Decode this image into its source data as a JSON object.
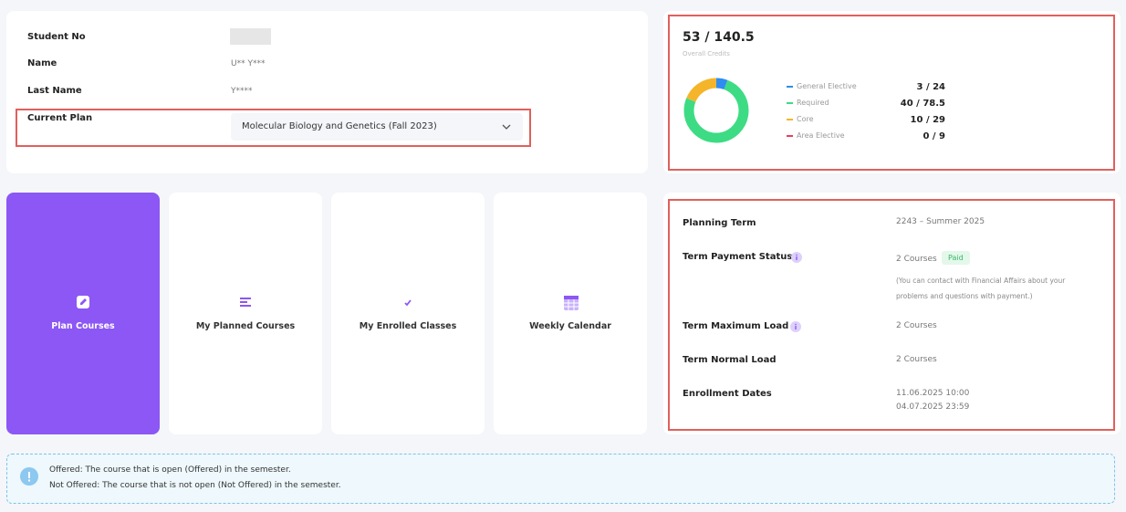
{
  "student_info": {
    "rows": [
      {
        "label": "Student No"
      },
      {
        "label": "Name",
        "value": "U** Y***"
      },
      {
        "label": "Last Name",
        "value": "Y****"
      }
    ]
  },
  "current_plan": {
    "label": "Current Plan",
    "value": "Molecular Biology and Genetics (Fall 2023)"
  },
  "credits": {
    "overall": "53 / 140.5",
    "caption": "Overall Credits",
    "categories": [
      {
        "name": "General Elective",
        "label": "3 / 24",
        "earned": 3,
        "color": "#2f8cf0"
      },
      {
        "name": "Required",
        "label": "40 / 78.5",
        "earned": 40,
        "color": "#3ddc84"
      },
      {
        "name": "Core",
        "label": "10 / 29",
        "earned": 10,
        "color": "#f5b52a"
      },
      {
        "name": "Area Elective",
        "label": "0 / 9",
        "earned": 0,
        "color": "#ef3b5d"
      }
    ]
  },
  "tiles": [
    "Plan Courses",
    "My Planned Courses",
    "My Enrolled Classes",
    "Weekly Calendar"
  ],
  "term_info": {
    "planning_term": {
      "label": "Planning Term",
      "value": "2243 – Summer 2025"
    },
    "payment_status": {
      "label": "Term Payment Status",
      "value": "2 Courses",
      "badge": "Paid",
      "note": "(You can contact with Financial Affairs about your problems and questions with payment.)"
    },
    "maximum_load": {
      "label": "Term Maximum Load",
      "value": "2 Courses"
    },
    "normal_load": {
      "label": "Term Normal Load",
      "value": "2 Courses"
    },
    "enrollment_dates": {
      "label": "Enrollment Dates",
      "values": [
        "11.06.2025 10:00",
        "04.07.2025 23:59"
      ]
    }
  },
  "notes": [
    "Offered: The course that is open (Offered) in the semester.",
    "Not Offered: The course that is not open (Not Offered) in the semester."
  ]
}
